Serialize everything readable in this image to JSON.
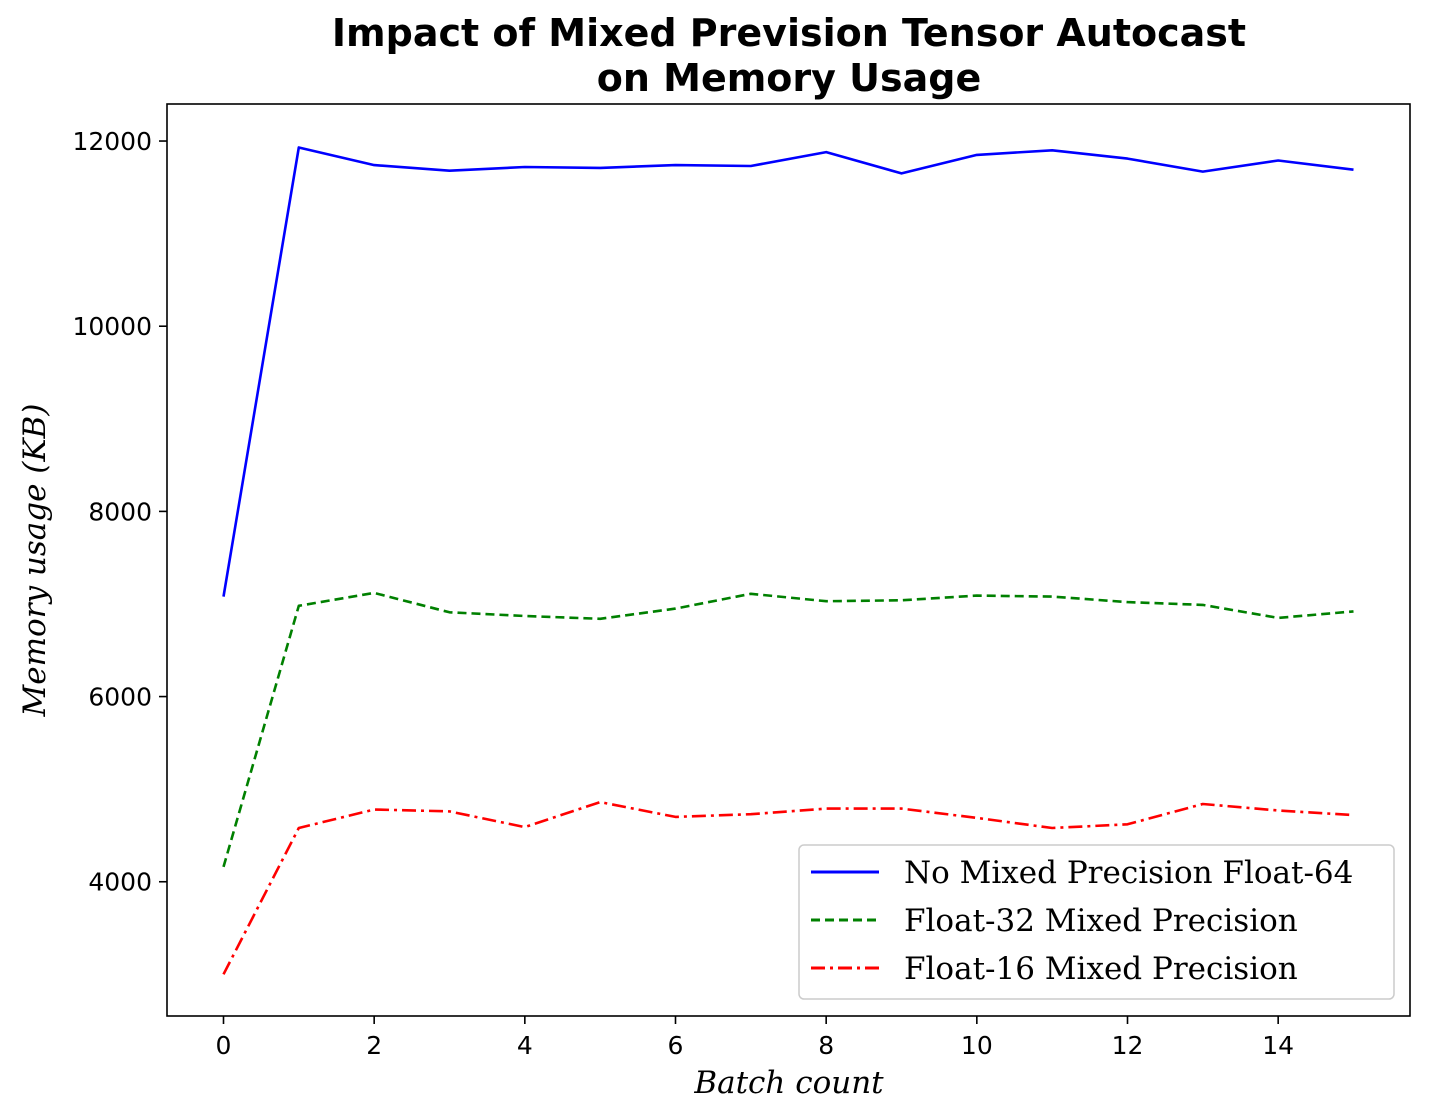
{
  "chart_data": {
    "type": "line",
    "title_lines": [
      "Impact of Mixed Prevision Tensor Autocast",
      "on Memory Usage"
    ],
    "xlabel": "Batch count",
    "ylabel": "Memory usage (KB)",
    "x": [
      0,
      1,
      2,
      3,
      4,
      5,
      6,
      7,
      8,
      9,
      10,
      11,
      12,
      13,
      14,
      15
    ],
    "xlim": [
      -0.75,
      15.75
    ],
    "ylim": [
      2550,
      12400
    ],
    "xticks": [
      0,
      2,
      4,
      6,
      8,
      10,
      12,
      14
    ],
    "yticks": [
      4000,
      6000,
      8000,
      10000,
      12000
    ],
    "xtick_labels": [
      "0",
      "2",
      "4",
      "6",
      "8",
      "10",
      "12",
      "14"
    ],
    "ytick_labels": [
      "4000",
      "6000",
      "8000",
      "10000",
      "12000"
    ],
    "legend_position": "lower-right",
    "series": [
      {
        "name": "No Mixed Precision Float-64",
        "color": "#0000ff",
        "dash": "solid",
        "values": [
          7080,
          11930,
          11740,
          11680,
          11720,
          11710,
          11740,
          11730,
          11880,
          11650,
          11850,
          11900,
          11810,
          11670,
          11790,
          11690
        ]
      },
      {
        "name": "Float-32 Mixed Precision",
        "color": "#008000",
        "dash": "dashed",
        "values": [
          4160,
          6980,
          7120,
          6910,
          6870,
          6840,
          6950,
          7110,
          7030,
          7040,
          7090,
          7080,
          7020,
          6990,
          6850,
          6920
        ]
      },
      {
        "name": "Float-16 Mixed Precision",
        "color": "#ff0000",
        "dash": "dashdot",
        "values": [
          3000,
          4580,
          4780,
          4760,
          4590,
          4860,
          4700,
          4730,
          4790,
          4790,
          4690,
          4580,
          4620,
          4840,
          4770,
          4720
        ]
      }
    ]
  }
}
